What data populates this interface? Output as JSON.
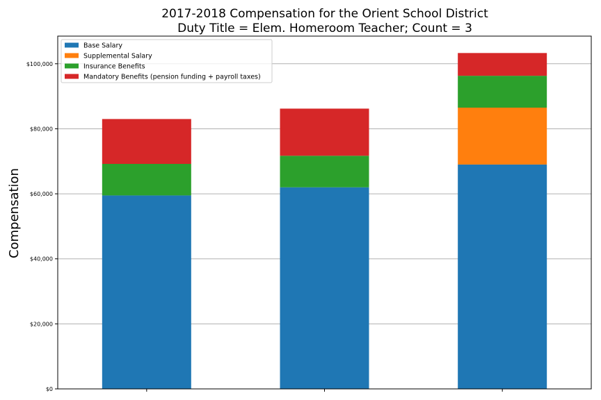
{
  "chart_data": {
    "type": "bar",
    "stacked": true,
    "title": "2017-2018 Compensation for the Orient School District",
    "subtitle": "Duty Title = Elem. Homeroom Teacher; Count = 3",
    "xlabel": "",
    "ylabel": "Compensation",
    "ylim": [
      0,
      108500
    ],
    "yticks": [
      0,
      20000,
      40000,
      60000,
      80000,
      100000
    ],
    "ytick_labels": [
      "$0",
      "$20,000",
      "$40,000",
      "$60,000",
      "$80,000",
      "$100,000"
    ],
    "grid": "horizontal",
    "legend_position": "top-left",
    "categories": [
      "",
      "",
      ""
    ],
    "series": [
      {
        "name": "Base Salary",
        "color": "#1f77b4",
        "values": [
          59500,
          62000,
          69000
        ]
      },
      {
        "name": "Supplemental Salary",
        "color": "#ff7f0e",
        "values": [
          0,
          0,
          17500
        ]
      },
      {
        "name": "Insurance Benefits",
        "color": "#2ca02c",
        "values": [
          9700,
          9700,
          9800
        ]
      },
      {
        "name": "Mandatory Benefits (pension funding + payroll taxes)",
        "color": "#d62728",
        "values": [
          13800,
          14500,
          7000
        ]
      }
    ]
  }
}
